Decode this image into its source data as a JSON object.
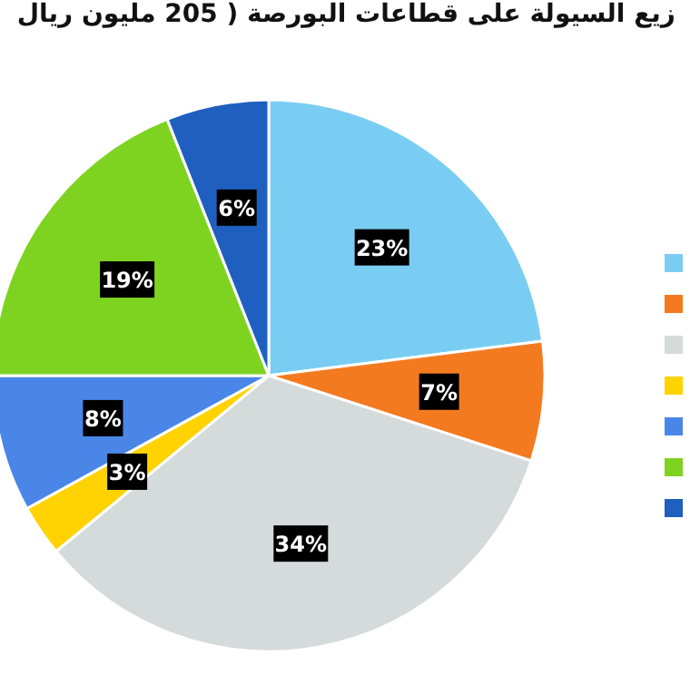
{
  "chart_data": {
    "type": "pie",
    "title": "زيع السيولة على قطاعات البورصة ( 205 مليون ريال",
    "categories": [
      null,
      null,
      null,
      null,
      null,
      null,
      null
    ],
    "values": [
      23,
      7,
      34,
      3,
      8,
      19,
      6
    ],
    "colors": [
      "#7acdf2",
      "#f47a20",
      "#d5dadb",
      "#ffd200",
      "#4a86e8",
      "#7ed321",
      "#1f5fbf"
    ],
    "value_labels": [
      "23%",
      "7%",
      "34%",
      "3%",
      "8%",
      "19%",
      "6%"
    ]
  }
}
